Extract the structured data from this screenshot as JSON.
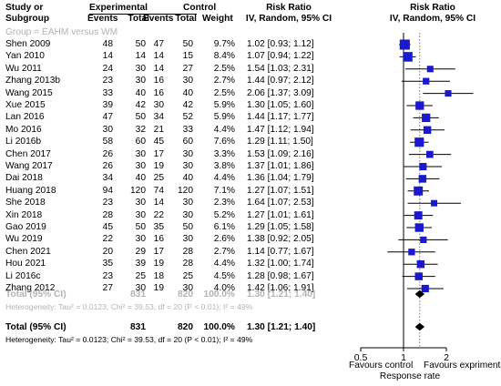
{
  "header": {
    "study_line1": "Study or",
    "study_line2": "Subgroup",
    "exp_title": "Experimental",
    "ctrl_title": "Control",
    "events": "Events",
    "total": "Total",
    "weight": "Weight",
    "rr_title": "Risk Ratio",
    "rr_sub": "IV, Random, 95% CI"
  },
  "group_label": "Group = EAHM versus WM",
  "studies": [
    {
      "name": "Shen  2009",
      "exp_events": "48",
      "exp_total": "50",
      "ctrl_events": "47",
      "ctrl_total": "50",
      "weight": "9.7%",
      "ci_text": "1.02 [0.93; 1.12]"
    },
    {
      "name": "Yan  2010",
      "exp_events": "14",
      "exp_total": "14",
      "ctrl_events": "14",
      "ctrl_total": "15",
      "weight": "8.4%",
      "ci_text": "1.07 [0.94; 1.22]"
    },
    {
      "name": "Wu  2011",
      "exp_events": "24",
      "exp_total": "30",
      "ctrl_events": "14",
      "ctrl_total": "27",
      "weight": "2.5%",
      "ci_text": "1.54 [1.03; 2.31]"
    },
    {
      "name": "Zhang 2013b",
      "exp_events": "23",
      "exp_total": "30",
      "ctrl_events": "16",
      "ctrl_total": "30",
      "weight": "2.7%",
      "ci_text": "1.44 [0.97; 2.12]"
    },
    {
      "name": "Wang  2015",
      "exp_events": "33",
      "exp_total": "40",
      "ctrl_events": "16",
      "ctrl_total": "40",
      "weight": "2.5%",
      "ci_text": "2.06 [1.37; 3.09]"
    },
    {
      "name": "Xue 2015",
      "exp_events": "39",
      "exp_total": "42",
      "ctrl_events": "30",
      "ctrl_total": "42",
      "weight": "5.9%",
      "ci_text": "1.30 [1.05; 1.60]"
    },
    {
      "name": "Lan  2016",
      "exp_events": "47",
      "exp_total": "50",
      "ctrl_events": "34",
      "ctrl_total": "52",
      "weight": "5.9%",
      "ci_text": "1.44 [1.17; 1.77]"
    },
    {
      "name": "Mo  2016",
      "exp_events": "30",
      "exp_total": "32",
      "ctrl_events": "21",
      "ctrl_total": "33",
      "weight": "4.4%",
      "ci_text": "1.47 [1.12; 1.94]"
    },
    {
      "name": "Li 2016b",
      "exp_events": "58",
      "exp_total": "60",
      "ctrl_events": "45",
      "ctrl_total": "60",
      "weight": "7.6%",
      "ci_text": "1.29 [1.11; 1.50]"
    },
    {
      "name": "Chen  2017",
      "exp_events": "26",
      "exp_total": "30",
      "ctrl_events": "17",
      "ctrl_total": "30",
      "weight": "3.3%",
      "ci_text": "1.53 [1.09; 2.16]"
    },
    {
      "name": "Wang 2017",
      "exp_events": "26",
      "exp_total": "30",
      "ctrl_events": "19",
      "ctrl_total": "30",
      "weight": "3.8%",
      "ci_text": "1.37 [1.01; 1.86]"
    },
    {
      "name": "Dai  2018",
      "exp_events": "34",
      "exp_total": "40",
      "ctrl_events": "25",
      "ctrl_total": "40",
      "weight": "4.4%",
      "ci_text": "1.36 [1.04; 1.79]"
    },
    {
      "name": "Huang  2018",
      "exp_events": "94",
      "exp_total": "120",
      "ctrl_events": "74",
      "ctrl_total": "120",
      "weight": "7.1%",
      "ci_text": "1.27 [1.07; 1.51]"
    },
    {
      "name": "She 2018",
      "exp_events": "23",
      "exp_total": "30",
      "ctrl_events": "14",
      "ctrl_total": "30",
      "weight": "2.3%",
      "ci_text": "1.64 [1.07; 2.53]"
    },
    {
      "name": "Xin  2018",
      "exp_events": "28",
      "exp_total": "30",
      "ctrl_events": "22",
      "ctrl_total": "30",
      "weight": "5.2%",
      "ci_text": "1.27 [1.01; 1.61]"
    },
    {
      "name": "Gao  2019",
      "exp_events": "45",
      "exp_total": "50",
      "ctrl_events": "35",
      "ctrl_total": "50",
      "weight": "6.1%",
      "ci_text": "1.29 [1.05; 1.58]"
    },
    {
      "name": "Wu  2019",
      "exp_events": "22",
      "exp_total": "30",
      "ctrl_events": "16",
      "ctrl_total": "30",
      "weight": "2.6%",
      "ci_text": "1.38 [0.92; 2.05]"
    },
    {
      "name": "Chen  2021",
      "exp_events": "20",
      "exp_total": "29",
      "ctrl_events": "17",
      "ctrl_total": "28",
      "weight": "2.7%",
      "ci_text": "1.14 [0.77; 1.67]"
    },
    {
      "name": "Hou 2021",
      "exp_events": "35",
      "exp_total": "39",
      "ctrl_events": "19",
      "ctrl_total": "28",
      "weight": "4.4%",
      "ci_text": "1.32 [1.00; 1.74]"
    },
    {
      "name": "Li 2016c",
      "exp_events": "23",
      "exp_total": "25",
      "ctrl_events": "18",
      "ctrl_total": "25",
      "weight": "4.5%",
      "ci_text": "1.28 [0.98; 1.67]"
    },
    {
      "name": "Zhang 2012",
      "exp_events": "27",
      "exp_total": "30",
      "ctrl_events": "19",
      "ctrl_total": "30",
      "weight": "4.0%",
      "ci_text": "1.42 [1.06; 1.91]"
    }
  ],
  "subtotal": {
    "label": "Total (95% CI)",
    "exp_total": "831",
    "ctrl_total": "820",
    "weight": "100.0%",
    "ci_text": "1.30 [1.21; 1.40]",
    "heterogeneity": "Heterogeneity: Tau² = 0.0123; Chi² = 39.53, df = 20 (P < 0.01); I² = 49%"
  },
  "total": {
    "label": "Total (95% CI)",
    "exp_total": "831",
    "ctrl_total": "820",
    "weight": "100.0%",
    "ci_text": "1.30 [1.21; 1.40]",
    "heterogeneity": "Heterogeneity: Tau² = 0.0123; Chi² = 39.53, df = 20 (P < 0.01); I² = 49%"
  },
  "axis": {
    "favours_left": "Favours control",
    "favours_right": "Favours exprimental",
    "label": "Response rate"
  },
  "colors": {
    "square": "#1a1acc",
    "group_text": "#b3b3b3"
  },
  "chart_data": {
    "type": "scatter",
    "subtype": "forest-plot",
    "scale": "log",
    "xlim": [
      0.5,
      2.5
    ],
    "xticks": [
      0.5,
      1,
      2
    ],
    "xtick_labels": [
      "0.5",
      "1",
      "2"
    ],
    "null_line": 1,
    "pooled_reference_line": 1.3,
    "xlabel": "Response rate",
    "estimates": [
      {
        "study": "Shen  2009",
        "rr": 1.02,
        "lower": 0.93,
        "upper": 1.12,
        "weight": 9.7
      },
      {
        "study": "Yan  2010",
        "rr": 1.07,
        "lower": 0.94,
        "upper": 1.22,
        "weight": 8.4
      },
      {
        "study": "Wu  2011",
        "rr": 1.54,
        "lower": 1.03,
        "upper": 2.31,
        "weight": 2.5
      },
      {
        "study": "Zhang 2013b",
        "rr": 1.44,
        "lower": 0.97,
        "upper": 2.12,
        "weight": 2.7
      },
      {
        "study": "Wang  2015",
        "rr": 2.06,
        "lower": 1.37,
        "upper": 3.09,
        "weight": 2.5
      },
      {
        "study": "Xue 2015",
        "rr": 1.3,
        "lower": 1.05,
        "upper": 1.6,
        "weight": 5.9
      },
      {
        "study": "Lan  2016",
        "rr": 1.44,
        "lower": 1.17,
        "upper": 1.77,
        "weight": 5.9
      },
      {
        "study": "Mo  2016",
        "rr": 1.47,
        "lower": 1.12,
        "upper": 1.94,
        "weight": 4.4
      },
      {
        "study": "Li 2016b",
        "rr": 1.29,
        "lower": 1.11,
        "upper": 1.5,
        "weight": 7.6
      },
      {
        "study": "Chen  2017",
        "rr": 1.53,
        "lower": 1.09,
        "upper": 2.16,
        "weight": 3.3
      },
      {
        "study": "Wang 2017",
        "rr": 1.37,
        "lower": 1.01,
        "upper": 1.86,
        "weight": 3.8
      },
      {
        "study": "Dai  2018",
        "rr": 1.36,
        "lower": 1.04,
        "upper": 1.79,
        "weight": 4.4
      },
      {
        "study": "Huang  2018",
        "rr": 1.27,
        "lower": 1.07,
        "upper": 1.51,
        "weight": 7.1
      },
      {
        "study": "She 2018",
        "rr": 1.64,
        "lower": 1.07,
        "upper": 2.53,
        "weight": 2.3
      },
      {
        "study": "Xin  2018",
        "rr": 1.27,
        "lower": 1.01,
        "upper": 1.61,
        "weight": 5.2
      },
      {
        "study": "Gao  2019",
        "rr": 1.29,
        "lower": 1.05,
        "upper": 1.58,
        "weight": 6.1
      },
      {
        "study": "Wu  2019",
        "rr": 1.38,
        "lower": 0.92,
        "upper": 2.05,
        "weight": 2.6
      },
      {
        "study": "Chen  2021",
        "rr": 1.14,
        "lower": 0.77,
        "upper": 1.67,
        "weight": 2.7
      },
      {
        "study": "Hou 2021",
        "rr": 1.32,
        "lower": 1.0,
        "upper": 1.74,
        "weight": 4.4
      },
      {
        "study": "Li 2016c",
        "rr": 1.28,
        "lower": 0.98,
        "upper": 1.67,
        "weight": 4.5
      },
      {
        "study": "Zhang 2012",
        "rr": 1.42,
        "lower": 1.06,
        "upper": 1.91,
        "weight": 4.0
      }
    ],
    "pooled": [
      {
        "label": "Total (95% CI)",
        "rr": 1.3,
        "lower": 1.21,
        "upper": 1.4
      },
      {
        "label": "Total (95% CI)",
        "rr": 1.3,
        "lower": 1.21,
        "upper": 1.4
      }
    ]
  }
}
